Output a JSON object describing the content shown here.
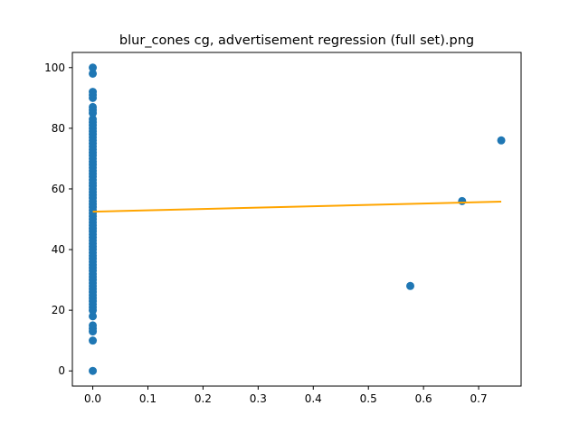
{
  "chart_data": {
    "type": "scatter",
    "title": "blur_cones cg, advertisement regression (full set).png",
    "xlabel": "",
    "ylabel": "",
    "xlim": [
      -0.037,
      0.777
    ],
    "ylim": [
      -5,
      105
    ],
    "xticks": [
      0.0,
      0.1,
      0.2,
      0.3,
      0.4,
      0.5,
      0.6,
      0.7
    ],
    "xtick_labels": [
      "0.0",
      "0.1",
      "0.2",
      "0.3",
      "0.4",
      "0.5",
      "0.6",
      "0.7"
    ],
    "yticks": [
      0,
      20,
      40,
      60,
      80,
      100
    ],
    "ytick_labels": [
      "0",
      "20",
      "40",
      "60",
      "80",
      "100"
    ],
    "grid": false,
    "series": [
      {
        "kind": "scatter",
        "color": "#1f77b4",
        "points": [
          [
            0,
            0
          ],
          [
            0,
            10
          ],
          [
            0,
            13
          ],
          [
            0,
            14
          ],
          [
            0,
            15
          ],
          [
            0,
            18
          ],
          [
            0,
            20
          ],
          [
            0,
            21
          ],
          [
            0,
            22
          ],
          [
            0,
            23
          ],
          [
            0,
            24
          ],
          [
            0,
            25
          ],
          [
            0,
            26
          ],
          [
            0,
            27
          ],
          [
            0,
            28
          ],
          [
            0,
            29
          ],
          [
            0,
            30
          ],
          [
            0,
            31
          ],
          [
            0,
            32
          ],
          [
            0,
            33
          ],
          [
            0,
            34
          ],
          [
            0,
            35
          ],
          [
            0,
            36
          ],
          [
            0,
            37
          ],
          [
            0,
            38
          ],
          [
            0,
            39
          ],
          [
            0,
            40
          ],
          [
            0,
            41
          ],
          [
            0,
            42
          ],
          [
            0,
            43
          ],
          [
            0,
            44
          ],
          [
            0,
            45
          ],
          [
            0,
            46
          ],
          [
            0,
            47
          ],
          [
            0,
            48
          ],
          [
            0,
            49
          ],
          [
            0,
            50
          ],
          [
            0,
            51
          ],
          [
            0,
            52
          ],
          [
            0,
            53
          ],
          [
            0,
            54
          ],
          [
            0,
            55
          ],
          [
            0,
            56
          ],
          [
            0,
            57
          ],
          [
            0,
            58
          ],
          [
            0,
            59
          ],
          [
            0,
            60
          ],
          [
            0,
            61
          ],
          [
            0,
            62
          ],
          [
            0,
            63
          ],
          [
            0,
            64
          ],
          [
            0,
            65
          ],
          [
            0,
            66
          ],
          [
            0,
            67
          ],
          [
            0,
            68
          ],
          [
            0,
            69
          ],
          [
            0,
            70
          ],
          [
            0,
            71
          ],
          [
            0,
            72
          ],
          [
            0,
            73
          ],
          [
            0,
            74
          ],
          [
            0,
            75
          ],
          [
            0,
            76
          ],
          [
            0,
            77
          ],
          [
            0,
            78
          ],
          [
            0,
            79
          ],
          [
            0,
            80
          ],
          [
            0,
            81
          ],
          [
            0,
            82
          ],
          [
            0,
            83
          ],
          [
            0,
            85
          ],
          [
            0,
            86
          ],
          [
            0,
            87
          ],
          [
            0,
            90
          ],
          [
            0,
            91
          ],
          [
            0,
            92
          ],
          [
            0,
            98
          ],
          [
            0,
            100
          ],
          [
            0.576,
            28
          ],
          [
            0.67,
            56
          ],
          [
            0.741,
            76
          ]
        ]
      },
      {
        "kind": "line",
        "color": "#ffa500",
        "points": [
          [
            0,
            52.5
          ],
          [
            0.741,
            55.8
          ]
        ]
      }
    ]
  }
}
